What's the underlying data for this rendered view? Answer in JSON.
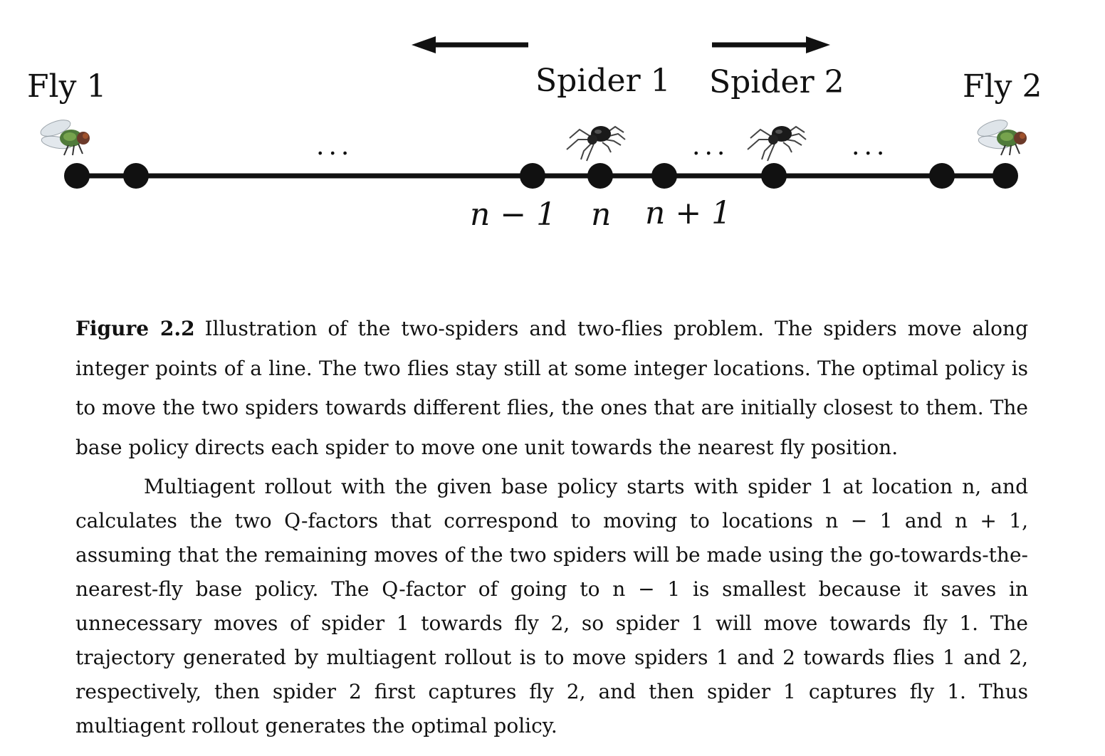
{
  "figure": {
    "labels": {
      "fly1": "Fly 1",
      "fly2": "Fly 2",
      "spider1": "Spider 1",
      "spider2": "Spider 2"
    },
    "position_labels": {
      "n_minus_1": "n − 1",
      "n": "n",
      "n_plus_1": "n + 1"
    },
    "ellipsis": "...",
    "icons": [
      "fly-icon",
      "spider-icon",
      "arrow-left-icon",
      "arrow-right-icon"
    ]
  },
  "caption": {
    "figure_number": "Figure 2.2",
    "text": "Illustration of the two-spiders and two-flies problem. The spiders move along integer points of a line. The two flies stay still at some integer locations. The optimal policy is to move the two spiders towards different flies, the ones that are initially closest to them. The base policy directs each spider to move one unit towards the nearest fly position."
  },
  "body": {
    "paragraph": "Multiagent rollout with the given base policy starts with spider 1 at location n, and calculates the two Q-factors that correspond to moving to locations n − 1 and n + 1, assuming that the remaining moves of the two spiders will be made using the go-towards-the-nearest-fly base policy. The Q-factor of going to n − 1 is smallest because it saves in unnecessary moves of spider 1 towards fly 2, so spider 1 will move towards fly 1. The trajectory generated by multiagent rollout is to move spiders 1 and 2 towards flies 1 and 2, respectively, then spider 2 first captures fly 2, and then spider 1 captures fly 1. Thus multiagent rollout generates the optimal policy."
  }
}
